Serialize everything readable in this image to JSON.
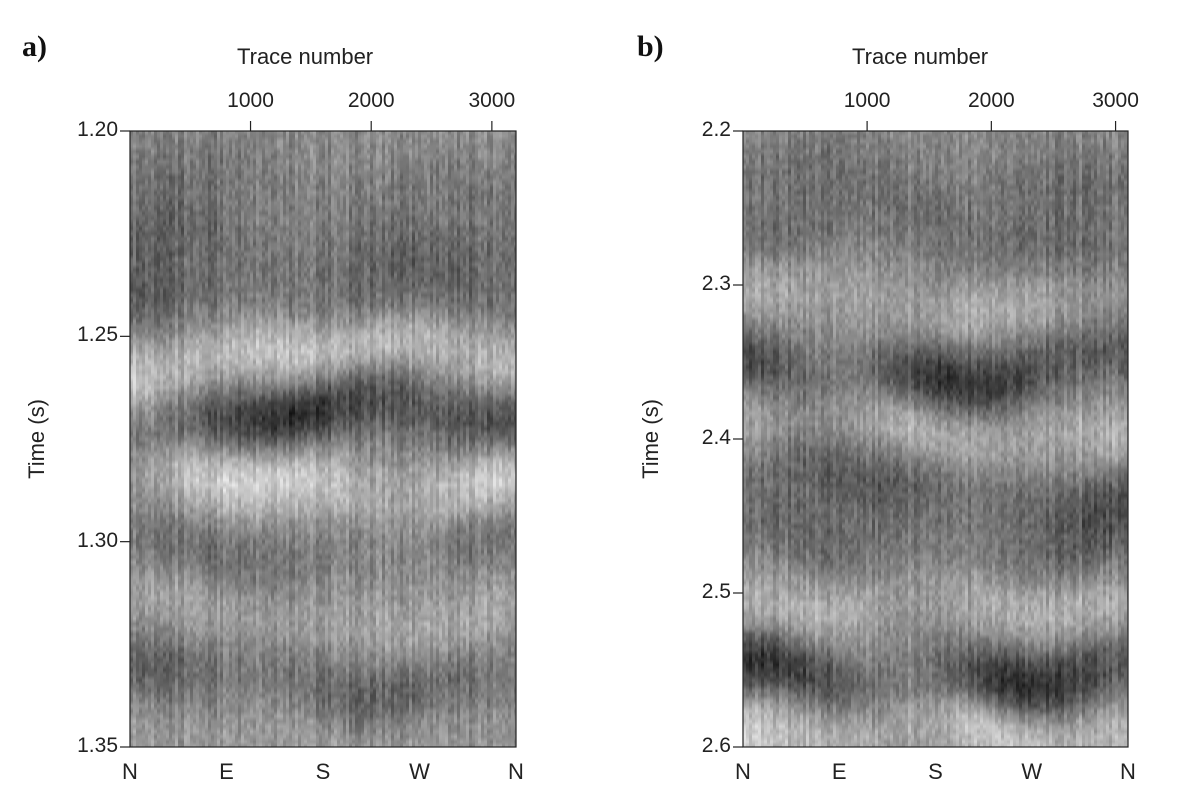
{
  "figure": {
    "panels": [
      {
        "letter": "a)",
        "xlabel": "Trace number",
        "ylabel": "Time (s)"
      },
      {
        "letter": "b)",
        "xlabel": "Trace number",
        "ylabel": "Time (s)"
      }
    ]
  },
  "chart_data": [
    {
      "type": "heatmap",
      "panel": "a)",
      "title": "",
      "xlabel": "Trace number",
      "ylabel": "Time (s)",
      "xlim": [
        1,
        3200
      ],
      "ylim": [
        1.2,
        1.35
      ],
      "y_inverted": true,
      "x_ticks": [
        1000,
        2000,
        3000
      ],
      "x_tick_labels": [
        "1000",
        "2000",
        "3000"
      ],
      "y_ticks": [
        1.2,
        1.25,
        1.3,
        1.35
      ],
      "y_tick_labels": [
        "1.20",
        "1.25",
        "1.30",
        "1.35"
      ],
      "bottom_labels": [
        "N",
        "E",
        "S",
        "W",
        "N"
      ],
      "colormap": "grayscale",
      "events": [
        {
          "time": 1.212,
          "amplitude": -0.2
        },
        {
          "time": 1.228,
          "amplitude": -0.35
        },
        {
          "time": 1.242,
          "amplitude": -0.45
        },
        {
          "time": 1.255,
          "amplitude": 0.85
        },
        {
          "time": 1.27,
          "amplitude": -1.0
        },
        {
          "time": 1.285,
          "amplitude": 0.75
        },
        {
          "time": 1.3,
          "amplitude": -0.3
        },
        {
          "time": 1.318,
          "amplitude": 0.3
        },
        {
          "time": 1.333,
          "amplitude": -0.45
        },
        {
          "time": 1.346,
          "amplitude": 0.2
        }
      ]
    },
    {
      "type": "heatmap",
      "panel": "b)",
      "title": "",
      "xlabel": "Trace number",
      "ylabel": "Time (s)",
      "xlim": [
        1,
        3100
      ],
      "ylim": [
        2.2,
        2.6
      ],
      "y_inverted": true,
      "x_ticks": [
        1000,
        2000,
        3000
      ],
      "x_tick_labels": [
        "1000",
        "2000",
        "3000"
      ],
      "y_ticks": [
        2.2,
        2.3,
        2.4,
        2.5,
        2.6
      ],
      "y_tick_labels": [
        "2.2",
        "2.3",
        "2.4",
        "2.5",
        "2.6"
      ],
      "bottom_labels": [
        "N",
        "E",
        "S",
        "W",
        "N"
      ],
      "colormap": "grayscale",
      "events": [
        {
          "time": 2.23,
          "amplitude": -0.25
        },
        {
          "time": 2.27,
          "amplitude": -0.3
        },
        {
          "time": 2.31,
          "amplitude": 0.35
        },
        {
          "time": 2.355,
          "amplitude": -0.9
        },
        {
          "time": 2.39,
          "amplitude": 0.55
        },
        {
          "time": 2.43,
          "amplitude": -0.5
        },
        {
          "time": 2.47,
          "amplitude": -0.35
        },
        {
          "time": 2.51,
          "amplitude": 0.45
        },
        {
          "time": 2.555,
          "amplitude": -1.0
        },
        {
          "time": 2.59,
          "amplitude": 0.8
        }
      ]
    }
  ]
}
